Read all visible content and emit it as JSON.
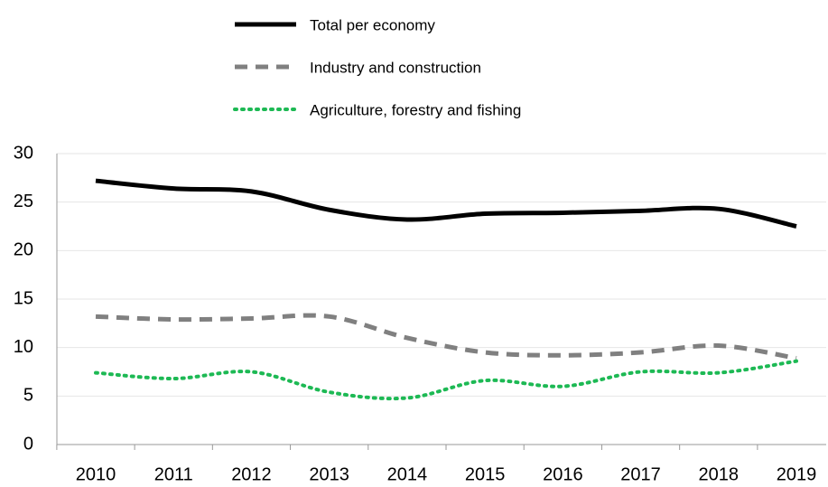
{
  "chart_data": {
    "type": "line",
    "categories": [
      "2010",
      "2011",
      "2012",
      "2013",
      "2014",
      "2015",
      "2016",
      "2017",
      "2018",
      "2019"
    ],
    "series": [
      {
        "name": "Total per economy",
        "color": "#000000",
        "dash": "solid",
        "values": [
          27.2,
          26.4,
          26.1,
          24.2,
          23.2,
          23.8,
          23.9,
          24.1,
          24.3,
          22.5
        ]
      },
      {
        "name": "Industry and construction",
        "color": "#808080",
        "dash": "dashed",
        "values": [
          13.2,
          12.9,
          13.0,
          13.2,
          11.0,
          9.5,
          9.2,
          9.5,
          10.2,
          8.9
        ]
      },
      {
        "name": "Agriculture, forestry and fishing",
        "color": "#1db954",
        "dash": "dotted",
        "values": [
          7.4,
          6.8,
          7.5,
          5.4,
          4.8,
          6.6,
          6.0,
          7.5,
          7.4,
          8.6
        ]
      }
    ],
    "ylim": [
      0,
      30
    ],
    "yticks": [
      0,
      5,
      10,
      15,
      20,
      25,
      30
    ],
    "grid": true,
    "legend": "top"
  }
}
